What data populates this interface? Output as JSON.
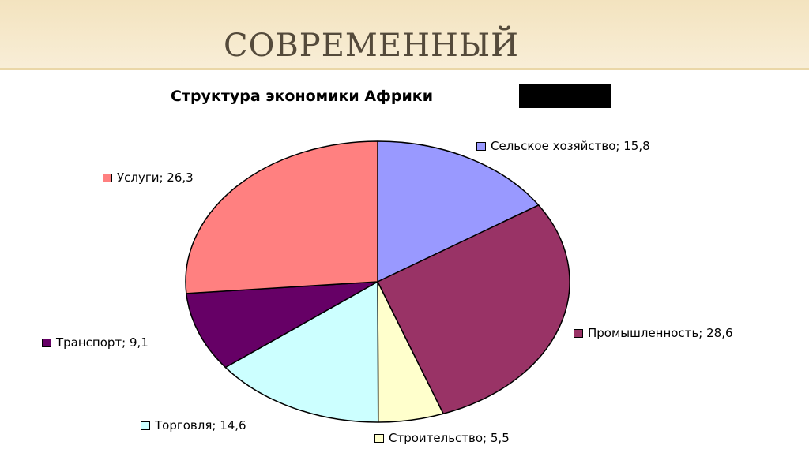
{
  "slide": {
    "title": "СОВРЕМЕННЫЙ"
  },
  "chart_data": {
    "type": "pie",
    "title": "Структура экономики Африки",
    "start_angle_deg": 0,
    "direction": "clockwise",
    "slices": [
      {
        "name": "Сельское хозяйство",
        "value": 15.8,
        "color": "#9999ff",
        "label": "Сельское хозяйство; 15,8"
      },
      {
        "name": "Промышленность",
        "value": 28.6,
        "color": "#993366",
        "label": "Промышленность; 28,6"
      },
      {
        "name": "Строительство",
        "value": 5.5,
        "color": "#ffffcc",
        "label": "Строительство; 5,5"
      },
      {
        "name": "Торговля",
        "value": 14.6,
        "color": "#ccffff",
        "label": "Торговля; 14,6"
      },
      {
        "name": "Транспорт",
        "value": 9.1,
        "color": "#660066",
        "label": "Транспорт; 9,1"
      },
      {
        "name": "Услуги",
        "value": 26.3,
        "color": "#ff8080",
        "label": "Услуги; 26,3"
      }
    ],
    "legend": "labels next to slices"
  }
}
